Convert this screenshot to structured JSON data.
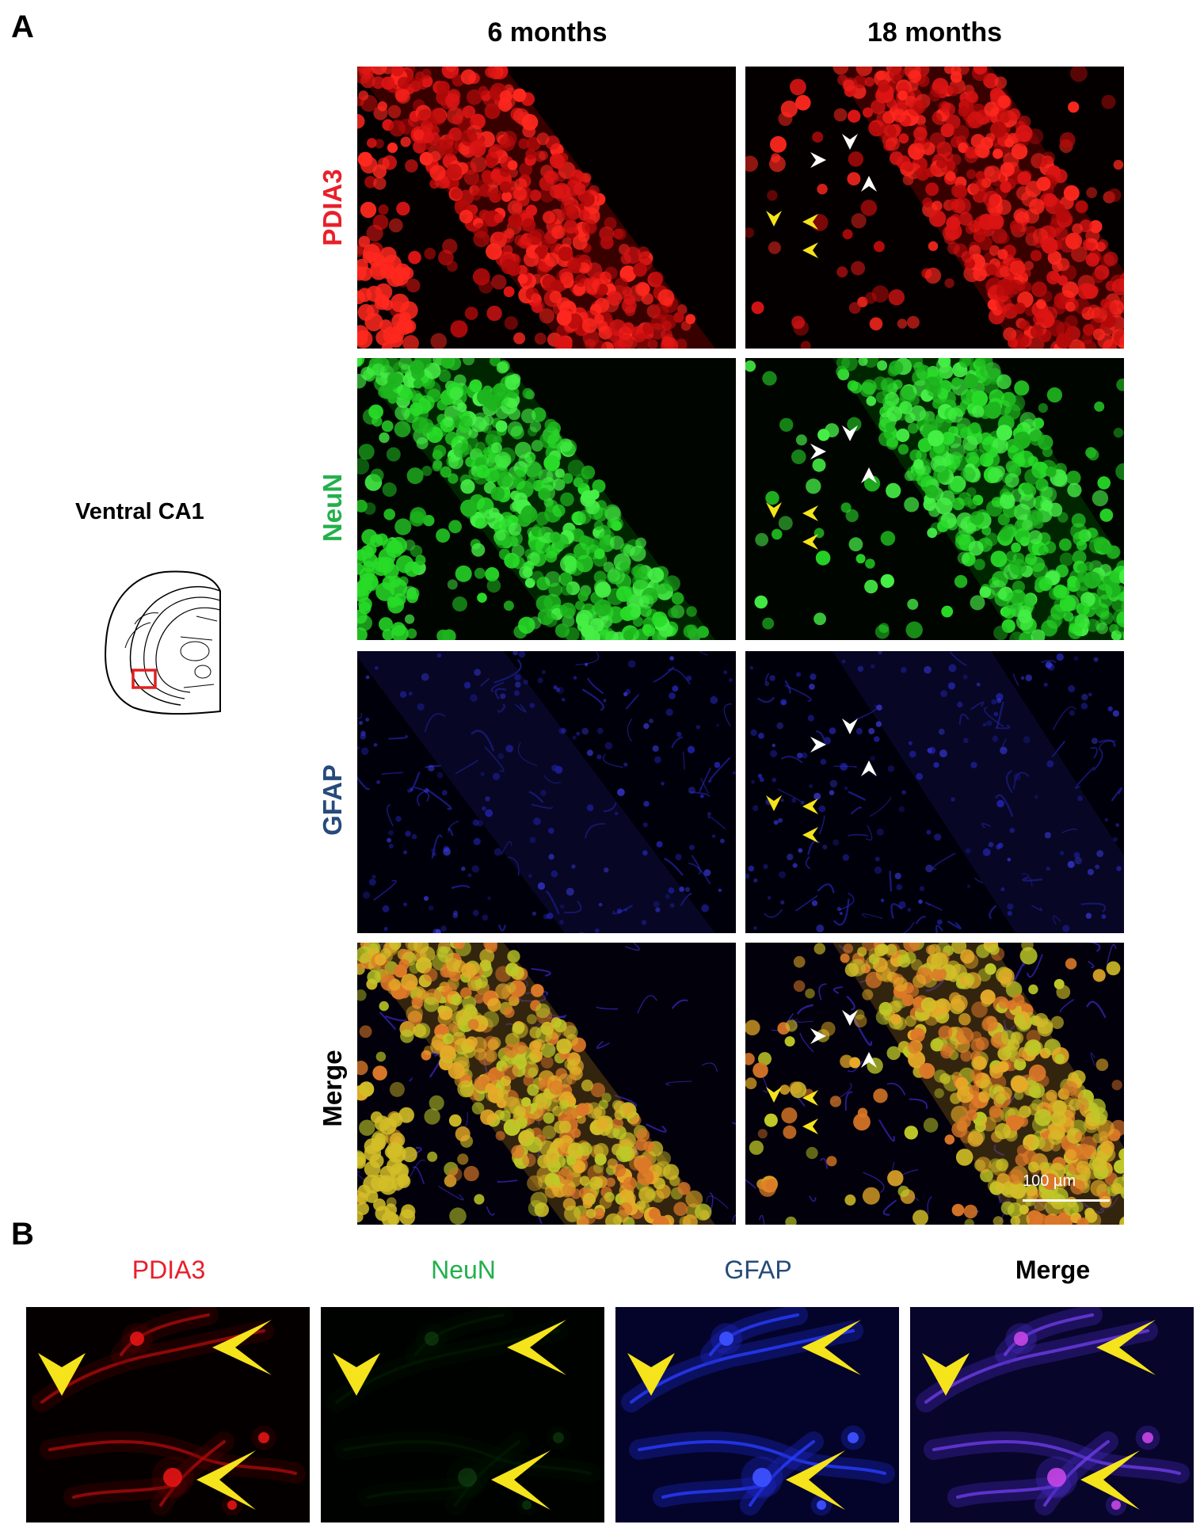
{
  "panel_a": {
    "letter": "A",
    "columns": [
      "6 months",
      "18 months"
    ],
    "region_label": "Ventral CA1",
    "rows": [
      {
        "label": "PDIA3",
        "color": "#e8202a"
      },
      {
        "label": "NeuN",
        "color": "#22b04b"
      },
      {
        "label": "GFAP",
        "color": "#264b7a"
      },
      {
        "label": "Merge",
        "color": "#000000"
      }
    ],
    "scale_bar": "100 µm"
  },
  "panel_b": {
    "letter": "B",
    "columns": [
      {
        "label": "PDIA3",
        "color": "#e8202a"
      },
      {
        "label": "NeuN",
        "color": "#22b04b"
      },
      {
        "label": "GFAP",
        "color": "#264b7a"
      },
      {
        "label": "Merge",
        "color": "#000000"
      }
    ]
  },
  "colors": {
    "arrowhead_white": "#ffffff",
    "arrowhead_yellow": "#f5e31c",
    "atlas_roi": "#e02020"
  }
}
